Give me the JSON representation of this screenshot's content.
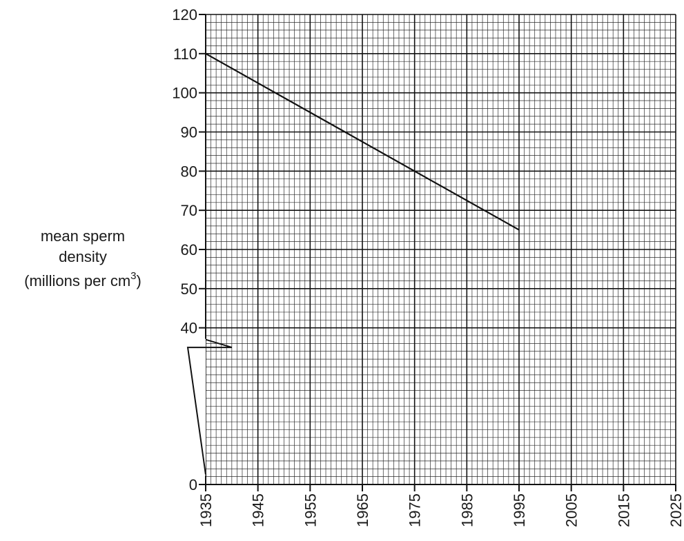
{
  "chart_data": {
    "type": "line",
    "title": "",
    "xlabel": "",
    "ylabel_lines": [
      "mean sperm",
      "density",
      "(millions per cm"
    ],
    "ylabel_superscript": "3",
    "ylabel_close": ")",
    "xlim": [
      1935,
      2025
    ],
    "ylim": [
      0,
      120
    ],
    "y_axis_break": true,
    "x_ticks": [
      1935,
      1945,
      1955,
      1965,
      1975,
      1985,
      1995,
      2005,
      2015,
      2025
    ],
    "y_ticks": [
      0,
      40,
      50,
      60,
      70,
      80,
      90,
      100,
      110,
      120
    ],
    "grid": true,
    "series": [
      {
        "x": [
          1935,
          1995
        ],
        "y": [
          110,
          65
        ]
      }
    ]
  }
}
